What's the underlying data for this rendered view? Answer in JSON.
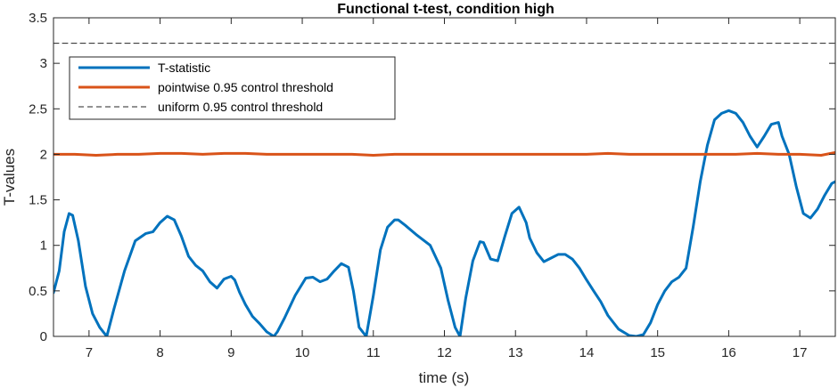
{
  "chart_data": {
    "type": "line",
    "title": "Functional t-test, condition high",
    "xlabel": "time (s)",
    "ylabel": "T-values",
    "xlim": [
      6.5,
      17.5
    ],
    "ylim": [
      0,
      3.5
    ],
    "xticks": [
      7,
      8,
      9,
      10,
      11,
      12,
      13,
      14,
      15,
      16,
      17
    ],
    "yticks": [
      0,
      0.5,
      1,
      1.5,
      2,
      2.5,
      3,
      3.5
    ],
    "ytick_labels": [
      "0",
      "0.5",
      "1",
      "1.5",
      "2",
      "2.5",
      "3",
      "3.5"
    ],
    "legend_position": "top-left",
    "grid": false,
    "series": [
      {
        "name": "T-statistic",
        "color": "#0072BD",
        "style": "solid",
        "x": [
          6.5,
          6.58,
          6.65,
          6.72,
          6.77,
          6.85,
          6.95,
          7.05,
          7.15,
          7.25,
          7.35,
          7.5,
          7.65,
          7.8,
          7.9,
          8.0,
          8.1,
          8.2,
          8.3,
          8.4,
          8.5,
          8.6,
          8.7,
          8.8,
          8.9,
          9.0,
          9.05,
          9.12,
          9.2,
          9.3,
          9.4,
          9.5,
          9.6,
          9.65,
          9.75,
          9.9,
          10.05,
          10.15,
          10.25,
          10.35,
          10.45,
          10.55,
          10.65,
          10.72,
          10.8,
          10.9,
          11.0,
          11.1,
          11.2,
          11.3,
          11.35,
          11.45,
          11.6,
          11.8,
          11.95,
          12.05,
          12.15,
          12.22,
          12.3,
          12.4,
          12.5,
          12.55,
          12.65,
          12.75,
          12.85,
          12.95,
          13.05,
          13.15,
          13.2,
          13.3,
          13.4,
          13.5,
          13.6,
          13.7,
          13.8,
          13.9,
          14.0,
          14.1,
          14.2,
          14.3,
          14.45,
          14.6,
          14.7,
          14.8,
          14.9,
          15.0,
          15.1,
          15.2,
          15.3,
          15.4,
          15.5,
          15.6,
          15.7,
          15.8,
          15.9,
          16.0,
          16.1,
          16.2,
          16.3,
          16.4,
          16.5,
          16.6,
          16.7,
          16.75,
          16.85,
          16.95,
          17.05,
          17.15,
          17.25,
          17.35,
          17.45,
          17.5
        ],
        "y": [
          0.48,
          0.72,
          1.15,
          1.35,
          1.33,
          1.05,
          0.55,
          0.25,
          0.1,
          0.0,
          0.3,
          0.72,
          1.05,
          1.13,
          1.15,
          1.25,
          1.32,
          1.28,
          1.1,
          0.88,
          0.78,
          0.72,
          0.6,
          0.53,
          0.63,
          0.66,
          0.62,
          0.48,
          0.35,
          0.22,
          0.14,
          0.05,
          0.0,
          0.05,
          0.2,
          0.45,
          0.64,
          0.65,
          0.6,
          0.63,
          0.72,
          0.8,
          0.76,
          0.5,
          0.1,
          0.0,
          0.45,
          0.95,
          1.2,
          1.28,
          1.28,
          1.22,
          1.12,
          1.0,
          0.75,
          0.4,
          0.1,
          0.0,
          0.42,
          0.83,
          1.04,
          1.03,
          0.85,
          0.83,
          1.1,
          1.35,
          1.42,
          1.25,
          1.08,
          0.92,
          0.82,
          0.86,
          0.9,
          0.9,
          0.85,
          0.75,
          0.62,
          0.5,
          0.38,
          0.23,
          0.08,
          0.01,
          0.0,
          0.02,
          0.15,
          0.35,
          0.5,
          0.6,
          0.65,
          0.75,
          1.2,
          1.7,
          2.1,
          2.38,
          2.45,
          2.48,
          2.45,
          2.35,
          2.2,
          2.08,
          2.2,
          2.33,
          2.35,
          2.2,
          2.0,
          1.65,
          1.35,
          1.3,
          1.4,
          1.55,
          1.68,
          1.7
        ]
      },
      {
        "name": "pointwise 0.95 control threshold",
        "color": "#D95319",
        "style": "solid",
        "x": [
          6.5,
          6.8,
          7.1,
          7.4,
          7.7,
          8.0,
          8.3,
          8.6,
          8.9,
          9.2,
          9.5,
          9.8,
          10.1,
          10.4,
          10.7,
          11.0,
          11.3,
          11.6,
          11.9,
          12.2,
          12.5,
          12.8,
          13.1,
          13.4,
          13.7,
          14.0,
          14.3,
          14.6,
          14.9,
          15.2,
          15.5,
          15.8,
          16.1,
          16.4,
          16.7,
          17.0,
          17.3,
          17.5
        ],
        "y": [
          2.0,
          2.0,
          1.99,
          2.0,
          2.0,
          2.01,
          2.01,
          2.0,
          2.01,
          2.01,
          2.0,
          2.0,
          2.0,
          2.0,
          2.0,
          1.99,
          2.0,
          2.0,
          2.0,
          2.0,
          2.0,
          2.0,
          2.0,
          2.0,
          2.0,
          2.0,
          2.01,
          2.0,
          2.0,
          2.0,
          2.0,
          2.0,
          2.0,
          2.01,
          2.0,
          2.0,
          1.99,
          2.02
        ]
      },
      {
        "name": "uniform 0.95 control threshold",
        "color": "#262626",
        "style": "dashed",
        "x": [
          6.5,
          17.5
        ],
        "y": [
          3.22,
          3.22
        ]
      }
    ]
  }
}
